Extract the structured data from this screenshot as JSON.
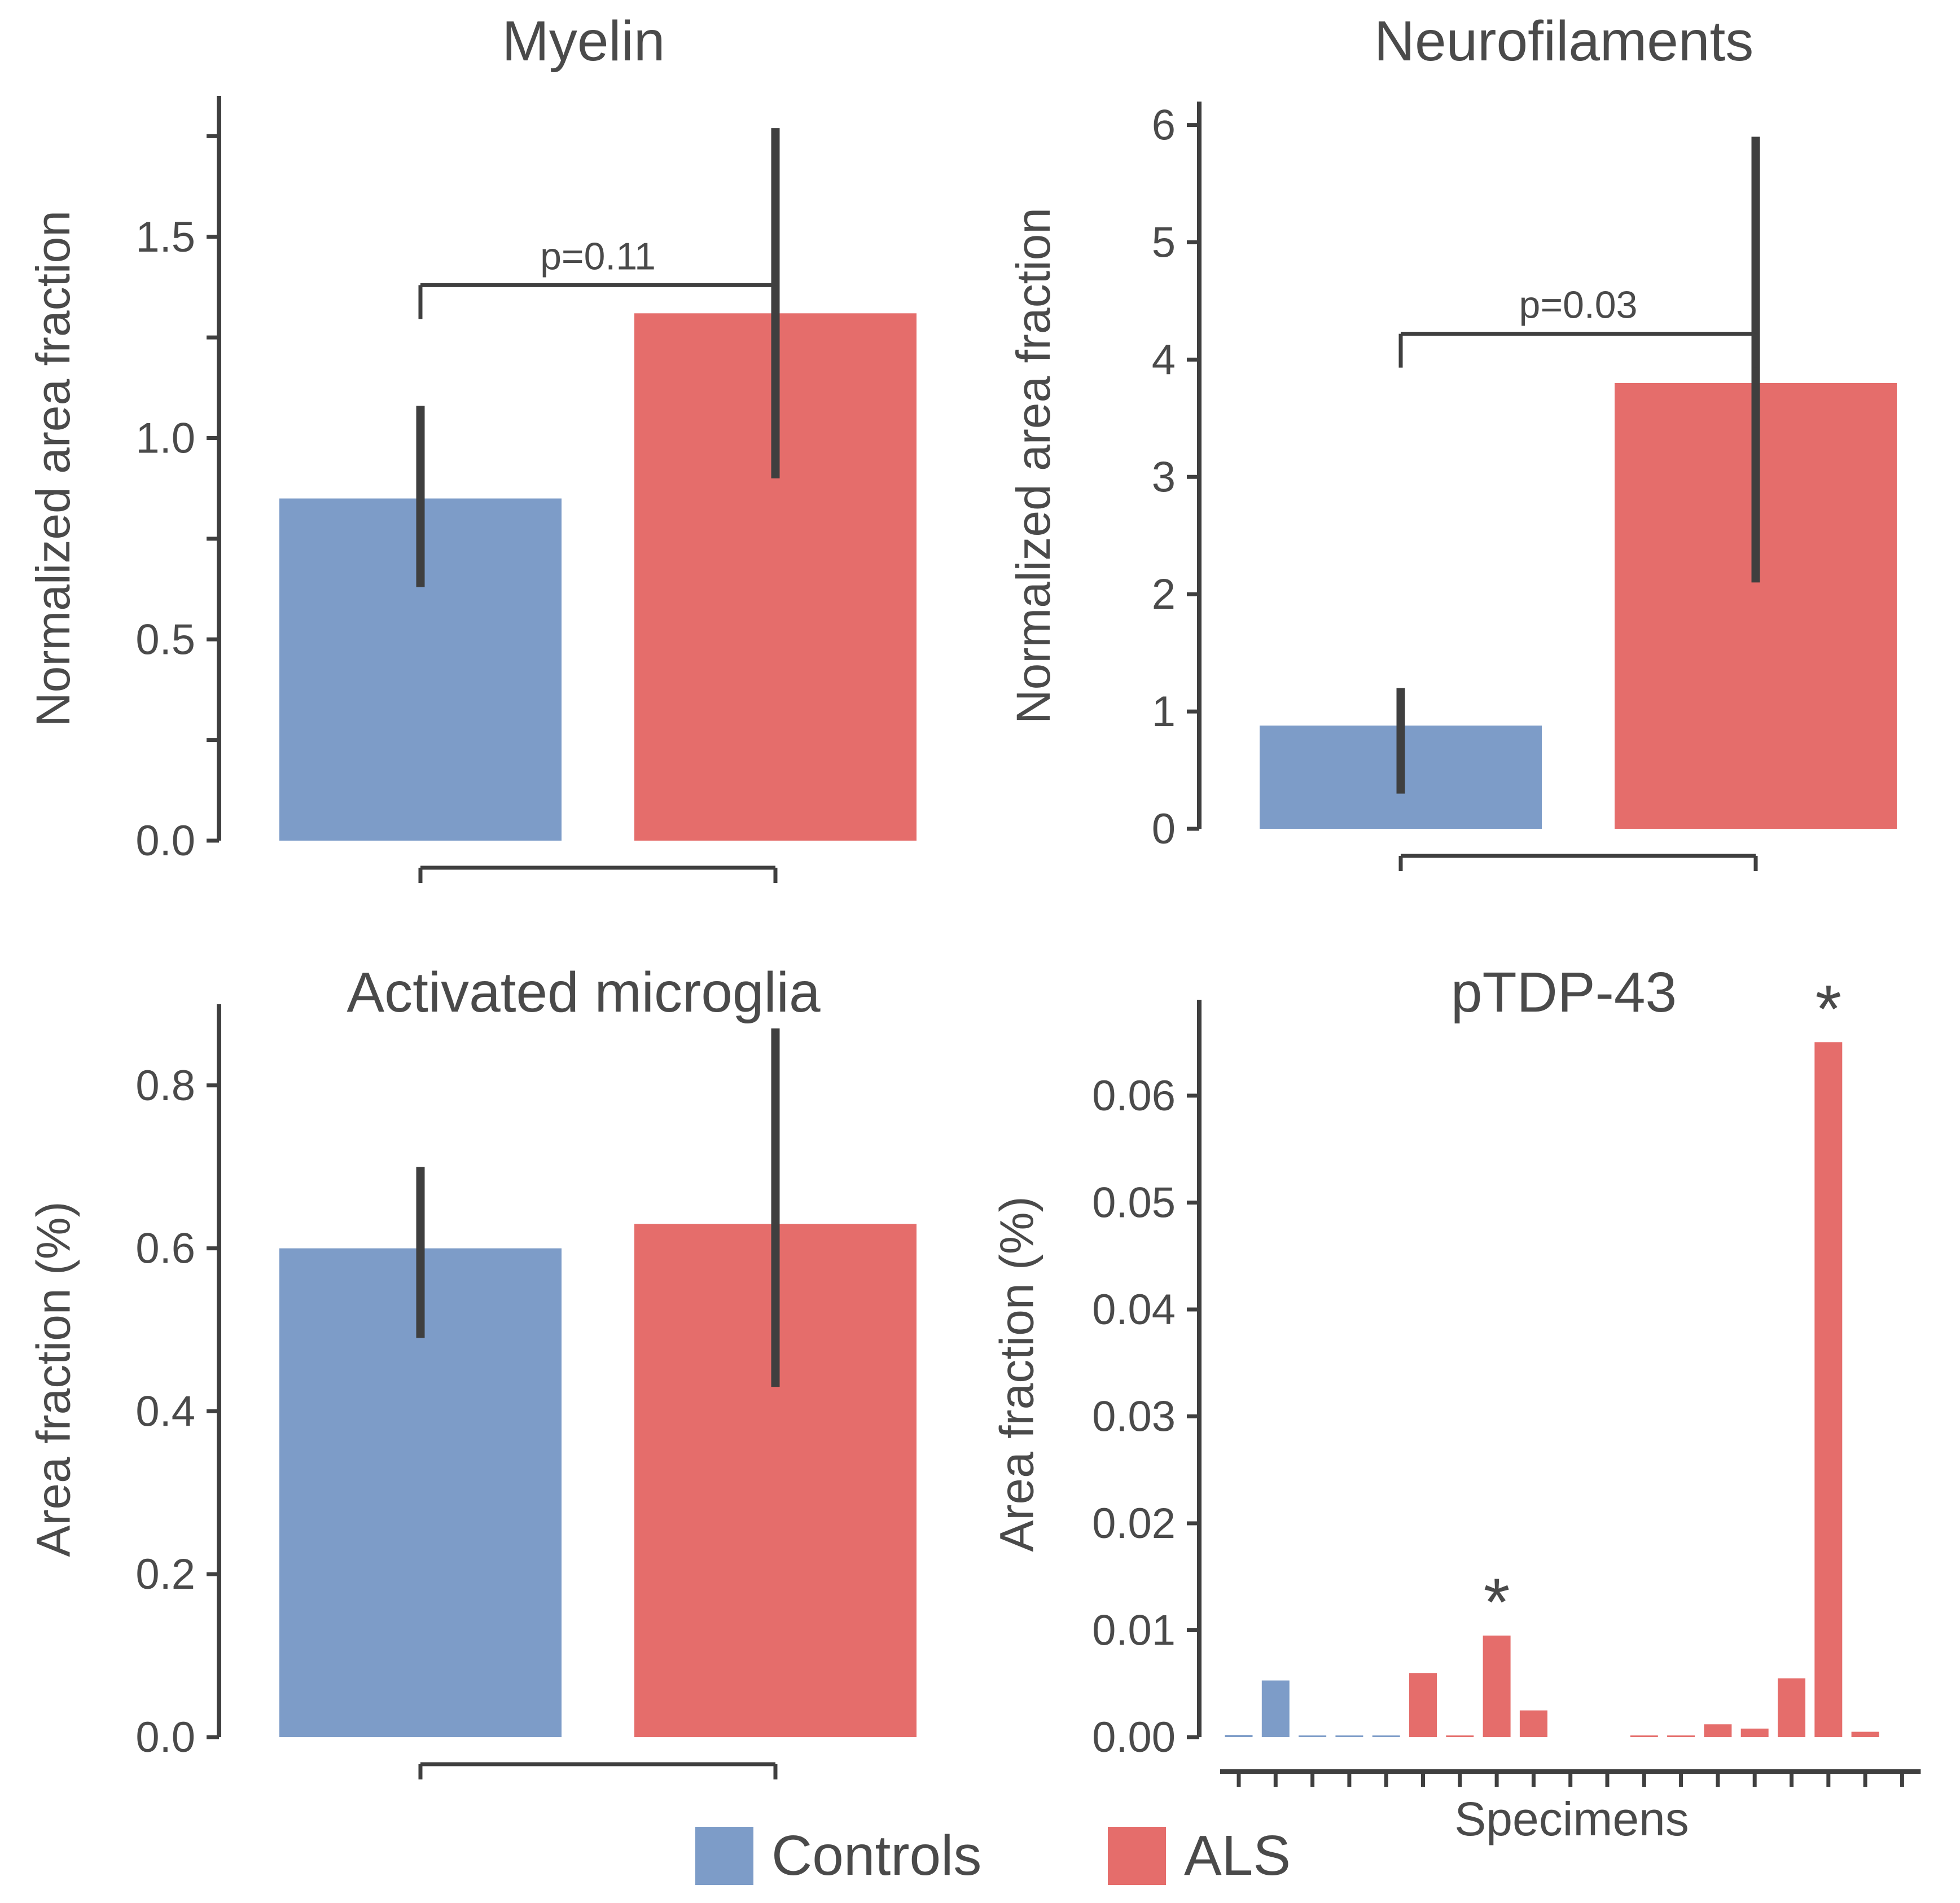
{
  "figure": {
    "background": "#ffffff"
  },
  "colors": {
    "controls": "#7D9CC8",
    "als": "#E56D6B",
    "line": "#3F3F3F",
    "text": "#4A4A4A"
  },
  "legend": {
    "items": [
      {
        "label": "Controls",
        "color_key": "controls"
      },
      {
        "label": "ALS",
        "color_key": "als"
      }
    ]
  },
  "star_symbol": "*",
  "chart_data": [
    {
      "id": "myelin",
      "type": "bar",
      "title": "Myelin",
      "ylabel": "Normalized area fraction",
      "categories": [
        "Controls",
        "ALS"
      ],
      "values": [
        0.85,
        1.31
      ],
      "error_low": [
        0.63,
        0.9
      ],
      "error_high": [
        1.08,
        1.77
      ],
      "ylim": [
        0,
        1.85
      ],
      "yticks": [
        0,
        0.25,
        0.5,
        0.75,
        1.0,
        1.25,
        1.5,
        1.75
      ],
      "ytick_labels": [
        "0.0",
        "",
        "0.5",
        "",
        "1.0",
        "",
        "1.5",
        ""
      ],
      "p_annotation": {
        "label": "p=0.11",
        "y": 1.38
      },
      "bottom_bracket": true
    },
    {
      "id": "neurofilaments",
      "type": "bar",
      "title": "Neurofilaments",
      "ylabel": "Normalized area fraction",
      "categories": [
        "Controls",
        "ALS"
      ],
      "values": [
        0.88,
        3.8
      ],
      "error_low": [
        0.3,
        2.1
      ],
      "error_high": [
        1.2,
        5.9
      ],
      "ylim": [
        0,
        6.2
      ],
      "yticks": [
        0,
        1,
        2,
        3,
        4,
        5,
        6
      ],
      "ytick_labels": [
        "0",
        "1",
        "2",
        "3",
        "4",
        "5",
        "6"
      ],
      "p_annotation": {
        "label": "p=0.03",
        "y": 4.22
      },
      "bottom_bracket": true
    },
    {
      "id": "activated-microglia",
      "type": "bar",
      "title": "Activated microglia",
      "ylabel": "Area fraction (%)",
      "categories": [
        "Controls",
        "ALS"
      ],
      "values": [
        0.6,
        0.63
      ],
      "error_low": [
        0.49,
        0.43
      ],
      "error_high": [
        0.7,
        0.87
      ],
      "ylim": [
        0,
        0.88
      ],
      "yticks": [
        0,
        0.2,
        0.4,
        0.6,
        0.8
      ],
      "ytick_labels": [
        "0.0",
        "0.2",
        "0.4",
        "0.6",
        "0.8"
      ],
      "p_annotation": null,
      "bottom_bracket": true
    },
    {
      "id": "ptdp-43",
      "type": "bar",
      "title": "pTDP-43",
      "ylabel": "Area fraction (%)",
      "xlabel": "Specimens",
      "ylim": [
        0,
        0.068
      ],
      "yticks": [
        0,
        0.01,
        0.02,
        0.03,
        0.04,
        0.05,
        0.06
      ],
      "ytick_labels": [
        "0.00",
        "0.01",
        "0.02",
        "0.03",
        "0.04",
        "0.05",
        "0.06"
      ],
      "specimens": [
        {
          "group": "controls",
          "value": 0.0002,
          "star": false
        },
        {
          "group": "controls",
          "value": 0.0053,
          "star": false
        },
        {
          "group": "controls",
          "value": 0.0001,
          "star": false
        },
        {
          "group": "controls",
          "value": 0.0001,
          "star": false
        },
        {
          "group": "controls",
          "value": 0.0001,
          "star": false
        },
        {
          "group": "als",
          "value": 0.006,
          "star": false
        },
        {
          "group": "als",
          "value": 0.0001,
          "star": false
        },
        {
          "group": "als",
          "value": 0.0095,
          "star": true
        },
        {
          "group": "als",
          "value": 0.0025,
          "star": false
        },
        {
          "group": "als",
          "value": 0.0,
          "star": false
        },
        {
          "group": "als",
          "value": 0.0,
          "star": false
        },
        {
          "group": "als",
          "value": 0.0001,
          "star": false
        },
        {
          "group": "als",
          "value": 0.0001,
          "star": false
        },
        {
          "group": "als",
          "value": 0.0012,
          "star": false
        },
        {
          "group": "als",
          "value": 0.0008,
          "star": false
        },
        {
          "group": "als",
          "value": 0.0055,
          "star": false
        },
        {
          "group": "als",
          "value": 0.065,
          "star": true
        },
        {
          "group": "als",
          "value": 0.0005,
          "star": false
        },
        {
          "group": "als",
          "value": 0.0,
          "star": false
        }
      ]
    }
  ]
}
